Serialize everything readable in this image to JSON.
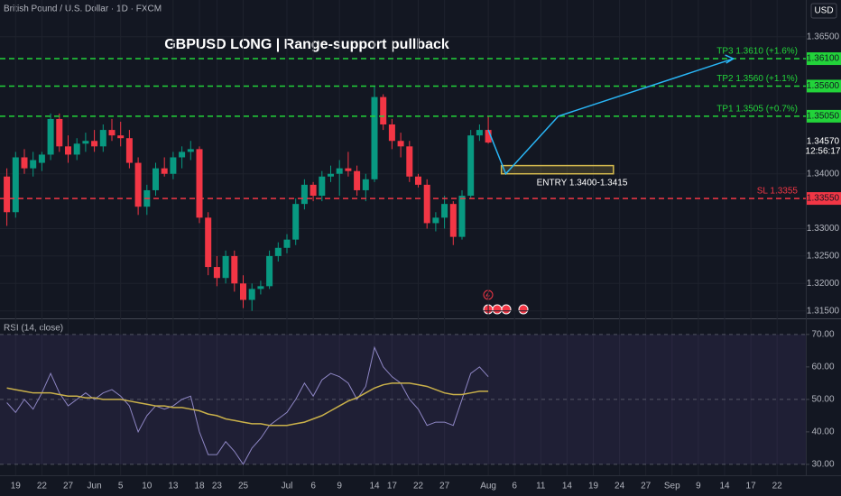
{
  "chart_data": [
    {
      "type": "candlestick",
      "title": "British Pound / U.S. Dollar · 1D · FXCM",
      "annotation": "GBPUSD  LONG  |  Range-support pullback",
      "currency": "USD",
      "up_color": "#089981",
      "down_color": "#f23645",
      "categories": [
        null,
        "19",
        null,
        null,
        "22",
        null,
        null,
        "27",
        null,
        null,
        "Jun",
        null,
        null,
        "5",
        null,
        null,
        "10",
        null,
        null,
        "13",
        null,
        null,
        "18",
        null,
        "23",
        null,
        null,
        "25",
        null,
        null,
        null,
        null,
        "Jul",
        null,
        null,
        "6",
        null,
        null,
        "9",
        null,
        null,
        null,
        "14",
        null,
        "17",
        null,
        null,
        "22",
        null,
        null,
        "27",
        null,
        null,
        null,
        null,
        "Aug",
        null,
        null,
        "6",
        null,
        null,
        "11",
        null,
        null,
        "14",
        null,
        null,
        "19",
        null,
        null,
        "24",
        null,
        null,
        "27",
        null,
        null,
        "Sep",
        null,
        null,
        "9",
        null,
        null,
        "14",
        null,
        null,
        "17",
        null,
        null,
        "22",
        null,
        null,
        null
      ],
      "open": [
        1.3395,
        1.333,
        1.343,
        1.341,
        1.342,
        1.3435,
        1.35,
        1.345,
        1.3435,
        1.3455,
        1.346,
        1.345,
        1.348,
        1.347,
        1.3465,
        1.342,
        1.334,
        1.337,
        1.341,
        1.34,
        1.343,
        1.344,
        1.3445,
        1.332,
        1.323,
        1.321,
        1.325,
        1.32,
        1.317,
        1.319,
        1.3195,
        1.325,
        1.3265,
        1.328,
        1.3345,
        1.338,
        1.336,
        1.3395,
        1.34,
        1.341,
        1.3405,
        1.337,
        1.339,
        1.354,
        1.349,
        1.346,
        1.345,
        1.3395,
        1.338,
        1.331,
        1.332,
        1.3345,
        1.3285,
        1.336,
        1.347,
        1.348,
        null,
        null,
        null,
        null,
        null,
        null,
        null,
        null,
        null,
        null,
        null,
        null,
        null,
        null,
        null,
        null,
        null,
        null,
        null,
        null,
        null,
        null,
        null,
        null,
        null,
        null,
        null,
        null,
        null,
        null,
        null,
        null,
        null,
        null,
        null,
        null
      ],
      "high": [
        1.341,
        1.344,
        1.3445,
        1.344,
        1.344,
        1.351,
        1.351,
        1.347,
        1.3465,
        1.3475,
        1.348,
        1.349,
        1.35,
        1.3495,
        1.348,
        1.343,
        1.338,
        1.342,
        1.343,
        1.344,
        1.345,
        1.346,
        1.345,
        1.333,
        1.325,
        1.326,
        1.326,
        1.3215,
        1.32,
        1.3205,
        1.326,
        1.3275,
        1.329,
        1.3355,
        1.339,
        1.3385,
        1.3405,
        1.3415,
        1.3425,
        1.344,
        1.3415,
        1.34,
        1.356,
        1.3545,
        1.35,
        1.3475,
        1.346,
        1.34,
        1.339,
        1.333,
        1.336,
        1.335,
        1.337,
        1.348,
        1.349,
        1.3505,
        null,
        null,
        null,
        null,
        null,
        null,
        null,
        null,
        null,
        null,
        null,
        null,
        null,
        null,
        null,
        null,
        null,
        null,
        null,
        null,
        null,
        null,
        null,
        null,
        null,
        null,
        null,
        null,
        null,
        null,
        null,
        null,
        null,
        null,
        null,
        null
      ],
      "low": [
        1.3305,
        1.332,
        1.34,
        1.3395,
        1.3405,
        1.3425,
        1.344,
        1.342,
        1.3425,
        1.344,
        1.344,
        1.344,
        1.346,
        1.345,
        1.341,
        1.3325,
        1.3325,
        1.336,
        1.3395,
        1.339,
        1.341,
        1.3425,
        1.331,
        1.3215,
        1.3195,
        1.32,
        1.3185,
        1.3155,
        1.315,
        1.318,
        1.319,
        1.324,
        1.3255,
        1.327,
        1.3335,
        1.335,
        1.335,
        1.3385,
        1.336,
        1.3395,
        1.336,
        1.335,
        1.3385,
        1.348,
        1.3445,
        1.343,
        1.3385,
        1.3375,
        1.33,
        1.3295,
        1.33,
        1.327,
        1.328,
        1.3355,
        1.346,
        1.3455,
        null,
        null,
        null,
        null,
        null,
        null,
        null,
        null,
        null,
        null,
        null,
        null,
        null,
        null,
        null,
        null,
        null,
        null,
        null,
        null,
        null,
        null,
        null,
        null,
        null,
        null,
        null,
        null,
        null,
        null,
        null,
        null,
        null,
        null,
        null,
        null
      ],
      "close": [
        1.333,
        1.343,
        1.341,
        1.3425,
        1.3435,
        1.35,
        1.345,
        1.3435,
        1.3455,
        1.346,
        1.345,
        1.348,
        1.347,
        1.3465,
        1.342,
        1.334,
        1.337,
        1.341,
        1.34,
        1.343,
        1.344,
        1.3445,
        1.332,
        1.323,
        1.321,
        1.325,
        1.32,
        1.317,
        1.319,
        1.3195,
        1.325,
        1.3265,
        1.328,
        1.3345,
        1.338,
        1.336,
        1.3395,
        1.34,
        1.341,
        1.3405,
        1.337,
        1.339,
        1.354,
        1.349,
        1.346,
        1.345,
        1.3395,
        1.338,
        1.331,
        1.332,
        1.3345,
        1.3285,
        1.336,
        1.347,
        1.348,
        1.3457,
        null,
        null,
        null,
        null,
        null,
        null,
        null,
        null,
        null,
        null,
        null,
        null,
        null,
        null,
        null,
        null,
        null,
        null,
        null,
        null,
        null,
        null,
        null,
        null,
        null,
        null,
        null,
        null,
        null,
        null,
        null,
        null,
        null,
        null,
        null,
        null
      ],
      "ylim": [
        1.3138,
        1.3717
      ],
      "yticks": [
        {
          "value": 1.365,
          "label": "1.36500"
        },
        {
          "value": 1.34,
          "label": "1.34000"
        },
        {
          "value": 1.33,
          "label": "1.33000"
        },
        {
          "value": 1.325,
          "label": "1.32500"
        },
        {
          "value": 1.32,
          "label": "1.32000"
        },
        {
          "value": 1.315,
          "label": "1.31500"
        }
      ],
      "levels": [
        {
          "name": "TP3 1.3610 (+1.6%)",
          "value": 1.361,
          "label": "1.36100",
          "color": "#22d33a"
        },
        {
          "name": "TP2 1.3560 (+1.1%)",
          "value": 1.356,
          "label": "1.35600",
          "color": "#22d33a"
        },
        {
          "name": "TP1 1.3505 (+0.7%)",
          "value": 1.3505,
          "label": "1.35050",
          "color": "#22d33a"
        },
        {
          "name": "SL 1.3355",
          "value": 1.3355,
          "label": "1.33550",
          "color": "#f23645"
        }
      ],
      "entry": {
        "label": "ENTRY 1.3400-1.3415",
        "low": 1.34,
        "high": 1.3415,
        "color": "#d4b94e"
      },
      "last": {
        "value": 1.3457,
        "label": "1.34570",
        "countdown": "12:56:17"
      },
      "projection_color": "#29b6f6"
    },
    {
      "type": "line",
      "title": "RSI (14, close)",
      "series": [
        {
          "color": "#8e86c4",
          "values": [
            49,
            46,
            50,
            47,
            52,
            58,
            52,
            48,
            50,
            52,
            50,
            52,
            53,
            51,
            48,
            40,
            45,
            48,
            47,
            48,
            50,
            51,
            40,
            33,
            33,
            37,
            34,
            30,
            35,
            38,
            42,
            44,
            46,
            50,
            55,
            51,
            56,
            58,
            57,
            55,
            50,
            54,
            66,
            60,
            57,
            55,
            50,
            47,
            42,
            43,
            43,
            42,
            50,
            58,
            60,
            57
          ]
        },
        {
          "color": "#c9b04a",
          "values": [
            53.5,
            53,
            52.5,
            52,
            52,
            52,
            51.5,
            51,
            51,
            50.5,
            50.5,
            50,
            50,
            50,
            49.5,
            49,
            48.5,
            48,
            48,
            47.5,
            47.5,
            47,
            46.5,
            45.5,
            45,
            44,
            43.5,
            43,
            42.5,
            42.5,
            42,
            42,
            42,
            42.5,
            43,
            44,
            45,
            46.5,
            48,
            49.5,
            50.5,
            52,
            53.5,
            54.5,
            55,
            55,
            55,
            54.5,
            54,
            53,
            52,
            51.5,
            51.5,
            52,
            52.5,
            52.5
          ]
        }
      ],
      "ylim": [
        27.2,
        74.4
      ],
      "yticks": [
        {
          "value": 70,
          "label": "70.00"
        },
        {
          "value": 60,
          "label": "60.00"
        },
        {
          "value": 50,
          "label": "50.00"
        },
        {
          "value": 40,
          "label": "40.00"
        },
        {
          "value": 30,
          "label": "30.00"
        }
      ],
      "hlines": [
        70,
        50,
        30
      ],
      "band_color": "#7e57c2"
    }
  ]
}
